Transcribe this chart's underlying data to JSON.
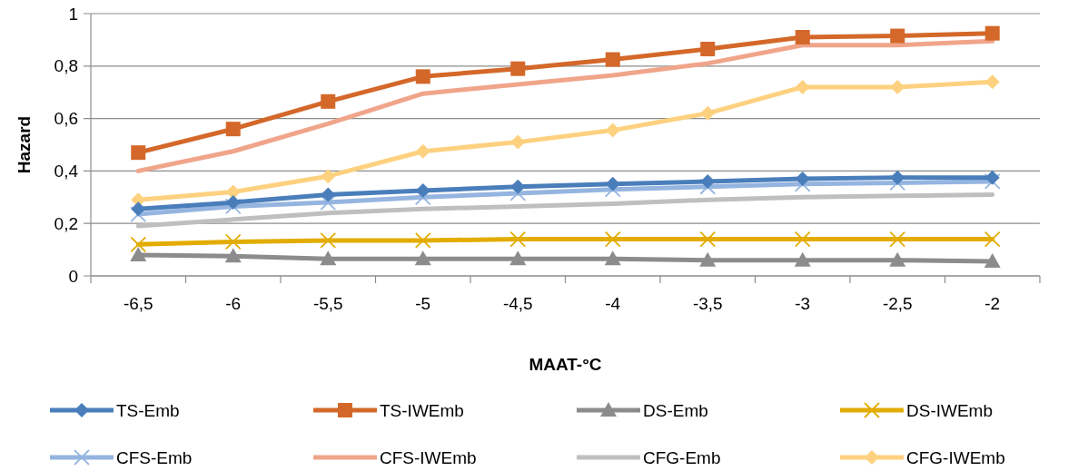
{
  "chart_data": {
    "type": "line",
    "xlabel": "MAAT-°C",
    "ylabel": "Hazard",
    "categories": [
      "-6,5",
      "-6",
      "-5,5",
      "-5",
      "-4,5",
      "-4",
      "-3,5",
      "-3",
      "-2,5",
      "-2"
    ],
    "ylim": [
      0,
      1
    ],
    "yticks": [
      0,
      {
        "value": 0.2,
        "label": "0,2"
      },
      {
        "value": 0.4,
        "label": "0,4"
      },
      {
        "value": 0.6,
        "label": "0,6"
      },
      {
        "value": 0.8,
        "label": "0,8"
      },
      1
    ],
    "grid": "y",
    "legend": "bottom",
    "series": [
      {
        "name": "TS-Emb",
        "color": "#4a7ebb",
        "marker": "diamond",
        "values": [
          0.255,
          0.28,
          0.31,
          0.325,
          0.34,
          0.35,
          0.36,
          0.37,
          0.375,
          0.375
        ]
      },
      {
        "name": "TS-IWEmb",
        "color": "#d4682a",
        "marker": "square",
        "values": [
          0.47,
          0.56,
          0.665,
          0.76,
          0.79,
          0.825,
          0.865,
          0.91,
          0.915,
          0.925
        ]
      },
      {
        "name": "DS-Emb",
        "color": "#8c8c8c",
        "marker": "triangle",
        "values": [
          0.08,
          0.075,
          0.065,
          0.065,
          0.065,
          0.065,
          0.06,
          0.06,
          0.06,
          0.055
        ]
      },
      {
        "name": "DS-IWEmb",
        "color": "#e3ac00",
        "marker": "cross",
        "values": [
          0.12,
          0.13,
          0.135,
          0.135,
          0.14,
          0.14,
          0.14,
          0.14,
          0.14,
          0.14
        ]
      },
      {
        "name": "CFS-Emb",
        "color": "#95b5e0",
        "marker": "cross",
        "values": [
          0.235,
          0.265,
          0.28,
          0.3,
          0.315,
          0.33,
          0.34,
          0.35,
          0.355,
          0.36
        ]
      },
      {
        "name": "CFS-IWEmb",
        "color": "#f0a58a",
        "marker": "none",
        "values": [
          0.4,
          0.475,
          0.58,
          0.695,
          0.73,
          0.765,
          0.81,
          0.88,
          0.88,
          0.895
        ]
      },
      {
        "name": "CFG-Emb",
        "color": "#bfbfbf",
        "marker": "none",
        "values": [
          0.19,
          0.215,
          0.24,
          0.255,
          0.265,
          0.275,
          0.29,
          0.3,
          0.305,
          0.31
        ]
      },
      {
        "name": "CFG-IWEmb",
        "color": "#fdd17f",
        "marker": "diamond",
        "values": [
          0.29,
          0.32,
          0.38,
          0.475,
          0.51,
          0.555,
          0.62,
          0.72,
          0.72,
          0.74
        ]
      }
    ]
  }
}
